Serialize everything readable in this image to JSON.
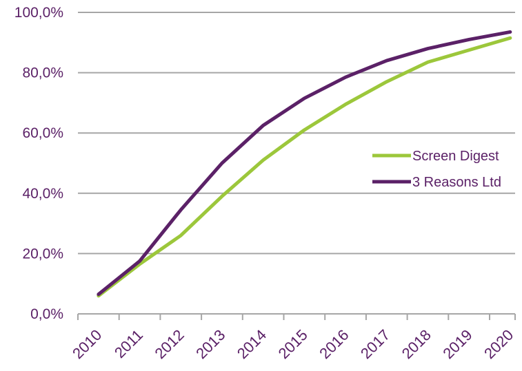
{
  "chart_data": {
    "type": "line",
    "title": "",
    "xlabel": "",
    "ylabel": "",
    "categories": [
      "2010",
      "2011",
      "2012",
      "2013",
      "2014",
      "2015",
      "2016",
      "2017",
      "2018",
      "2019",
      "2020"
    ],
    "ylim": [
      0,
      100
    ],
    "yticks": [
      "0,0%",
      "20,0%",
      "40,0%",
      "60,0%",
      "80,0%",
      "100,0%"
    ],
    "grid": true,
    "legend_position": "right",
    "series": [
      {
        "name": "Screen Digest",
        "color": "#9cc73b",
        "values": [
          6.0,
          16.5,
          26.0,
          39.0,
          51.0,
          61.0,
          69.5,
          77.0,
          83.5,
          87.5,
          91.5
        ]
      },
      {
        "name": "3 Reasons Ltd",
        "color": "#5b2167",
        "values": [
          6.5,
          17.5,
          34.5,
          50.0,
          62.5,
          71.5,
          78.5,
          84.0,
          88.0,
          91.0,
          93.5
        ]
      }
    ],
    "colors": {
      "axis_text": "#5b2167",
      "grid": "#a6a6a6"
    }
  }
}
